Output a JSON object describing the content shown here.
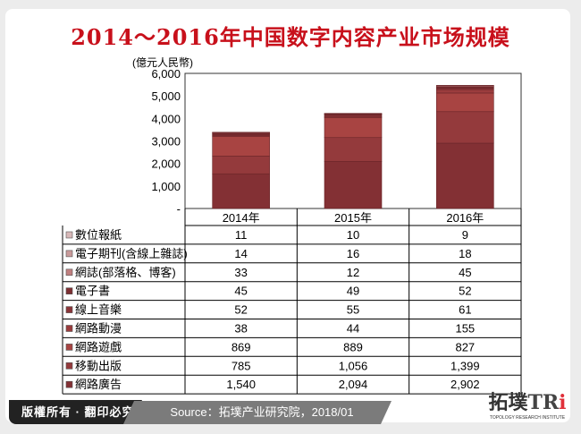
{
  "title": "2014～2016年中国数字内容产业市场规模",
  "unit_label": "(億元人民幣)",
  "chart_data": {
    "type": "bar",
    "stacked": true,
    "title": "2014～2016年中国数字内容产业市场规模",
    "ylabel": "(億元人民幣)",
    "ylim": [
      0,
      6000
    ],
    "yticks": [
      "-",
      "1,000",
      "2,000",
      "3,000",
      "4,000",
      "5,000",
      "6,000"
    ],
    "categories": [
      "2014年",
      "2015年",
      "2016年"
    ],
    "series": [
      {
        "name": "網路廣告",
        "values": [
          "1,540",
          "2,094",
          "2,902"
        ],
        "color": "#833034"
      },
      {
        "name": "移動出版",
        "values": [
          "785",
          "1,056",
          "1,399"
        ],
        "color": "#943a3c"
      },
      {
        "name": "網路遊戲",
        "values": [
          "869",
          "889",
          "827"
        ],
        "color": "#a84442"
      },
      {
        "name": "網路動漫",
        "values": [
          "38",
          "44",
          "155"
        ],
        "color": "#9b3c3d"
      },
      {
        "name": "線上音樂",
        "values": [
          "52",
          "55",
          "61"
        ],
        "color": "#8a3538"
      },
      {
        "name": "電子書",
        "values": [
          "45",
          "49",
          "52"
        ],
        "color": "#7d2f32"
      },
      {
        "name": "網誌(部落格、博客)",
        "values": [
          "33",
          "12",
          "45"
        ],
        "color": "#c07f7f"
      },
      {
        "name": "電子期刊(含線上雜誌)",
        "values": [
          "14",
          "16",
          "18"
        ],
        "color": "#c99a9a"
      },
      {
        "name": "數位報紙",
        "values": [
          "11",
          "10",
          "9"
        ],
        "color": "#d8b8b8"
      }
    ],
    "table_order": [
      "數位報紙",
      "電子期刊(含線上雜誌)",
      "網誌(部落格、博客)",
      "電子書",
      "線上音樂",
      "網路動漫",
      "網路遊戲",
      "移動出版",
      "網路廣告"
    ],
    "grid": false,
    "legend": "data-table"
  },
  "footer": {
    "copyright": "版權所有 · 翻印必究",
    "source": "Source：拓墣产业研究院，2018/01"
  },
  "logo": {
    "text": "拓墣TRi",
    "subtitle": "TOPOLOGY RESEARCH INSTITUTE"
  }
}
